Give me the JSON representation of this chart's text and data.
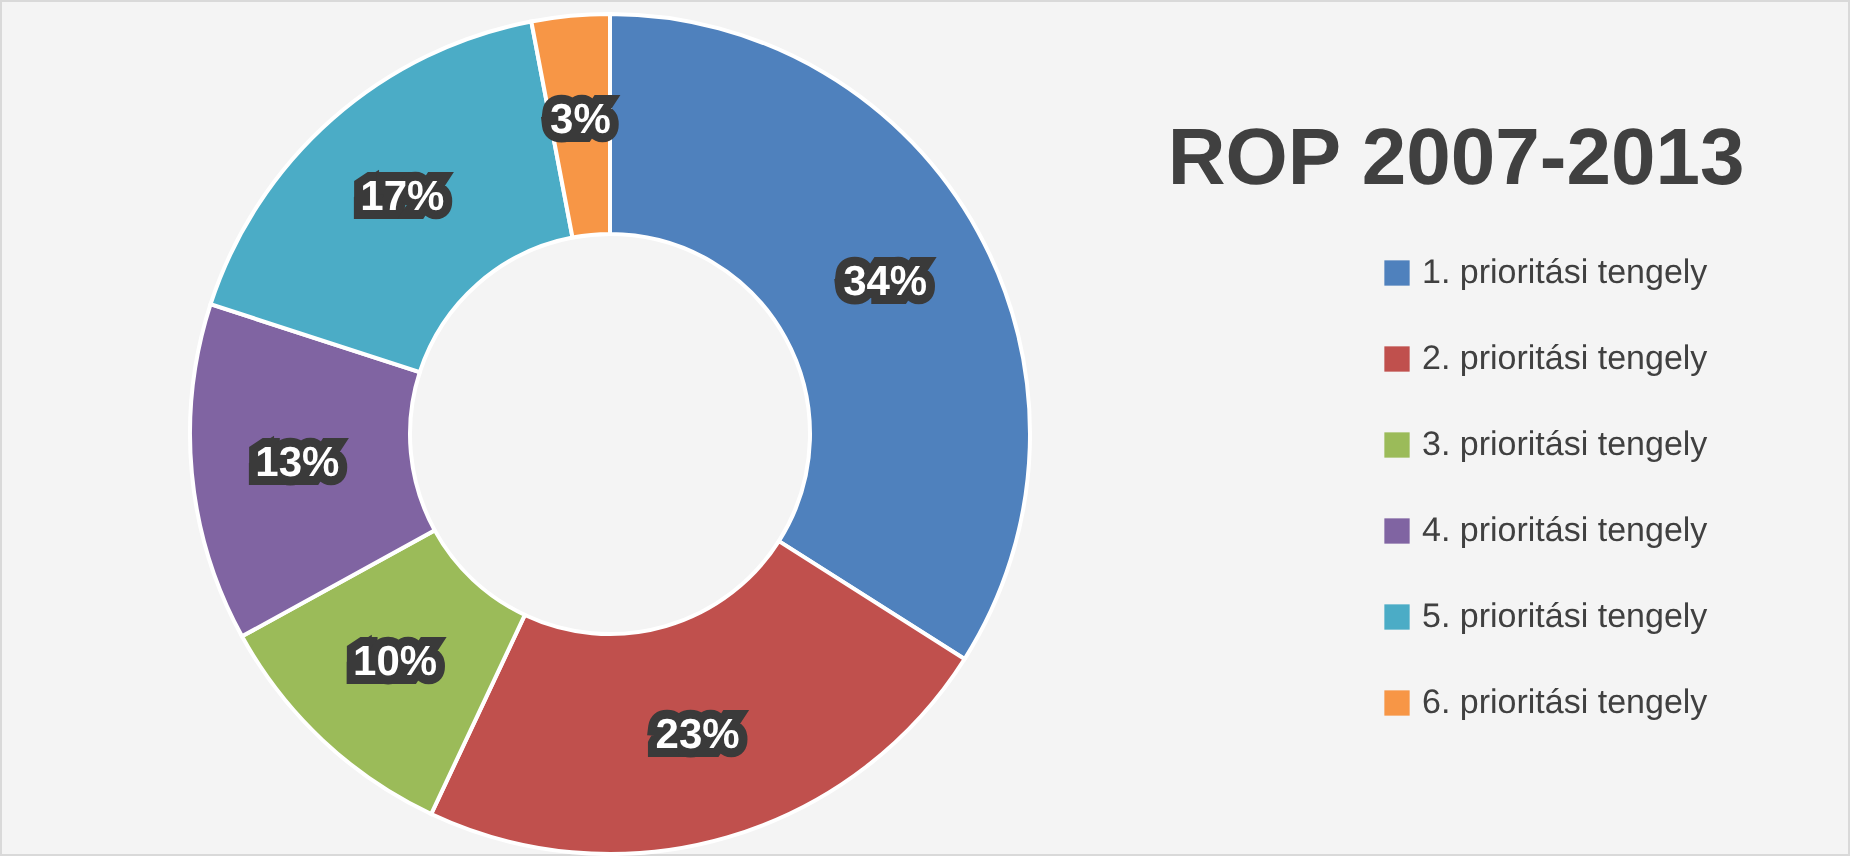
{
  "chart_data": {
    "type": "donut",
    "title": "ROP 2007-2013",
    "categories": [
      "1. prioritási tengely",
      "2. prioritási tengely",
      "3. prioritási tengely",
      "4. prioritási tengely",
      "5. prioritási tengely",
      "6. prioritási tengely"
    ],
    "values": [
      34,
      23,
      10,
      13,
      17,
      3
    ],
    "colors": [
      "#4f81bd",
      "#c0504d",
      "#9bbb59",
      "#8064a2",
      "#4bacc6",
      "#f79646"
    ],
    "value_labels": [
      "34%",
      "23%",
      "10%",
      "13%",
      "17%",
      "3%"
    ],
    "legend": "right"
  }
}
